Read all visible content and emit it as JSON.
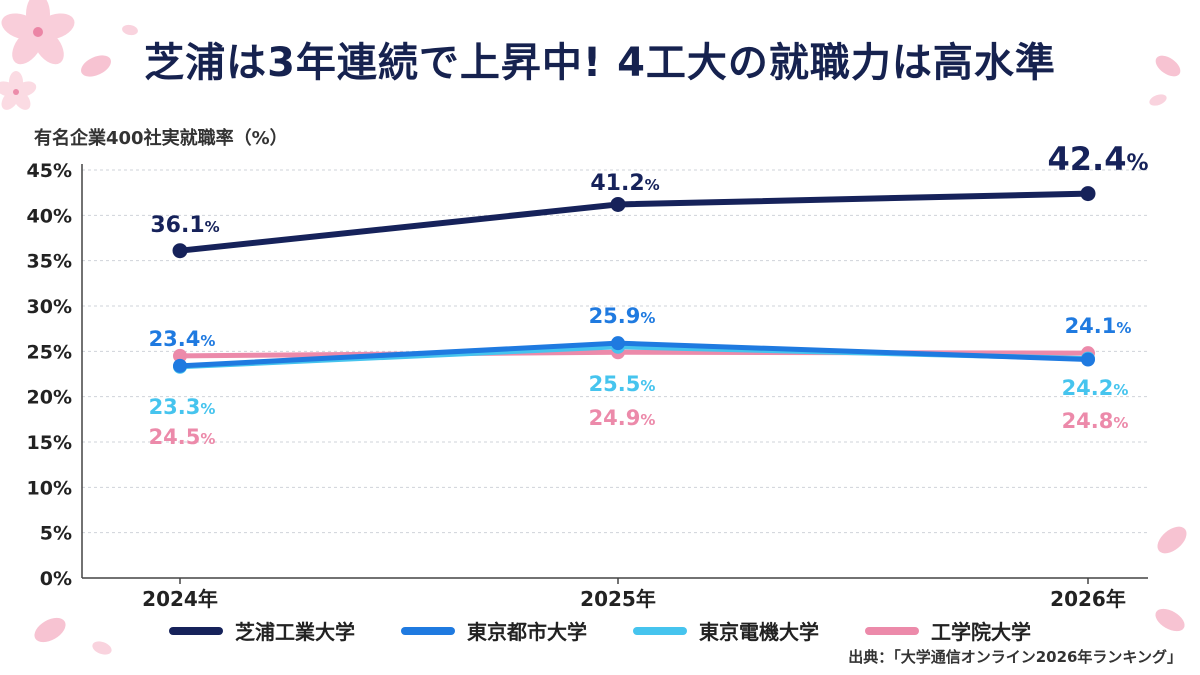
{
  "title": "芝浦は3年連続で上昇中! 4工大の就職力は高水準",
  "source": "出典：「大学通信オンライン2026年ランキング」",
  "chart_data": {
    "type": "line",
    "ylabel": "有名企業400社実就職率（%）",
    "x": [
      "2024年",
      "2025年",
      "2026年"
    ],
    "ylim": [
      0,
      45
    ],
    "yticks": [
      0,
      5,
      10,
      15,
      20,
      25,
      30,
      35,
      40,
      45
    ],
    "ytick_suffix": "%",
    "value_suffix": "%",
    "grid": true,
    "legend_position": "bottom",
    "series": [
      {
        "name": "芝浦工業大学",
        "color": "#16225a",
        "values": [
          36.1,
          41.2,
          42.4
        ]
      },
      {
        "name": "東京都市大学",
        "color": "#1f7ae0",
        "values": [
          23.4,
          25.9,
          24.1
        ]
      },
      {
        "name": "東京電機大学",
        "color": "#46c4ee",
        "values": [
          23.3,
          25.5,
          24.2
        ]
      },
      {
        "name": "工学院大学",
        "color": "#ec8aaa",
        "values": [
          24.5,
          24.9,
          24.8
        ]
      }
    ]
  }
}
